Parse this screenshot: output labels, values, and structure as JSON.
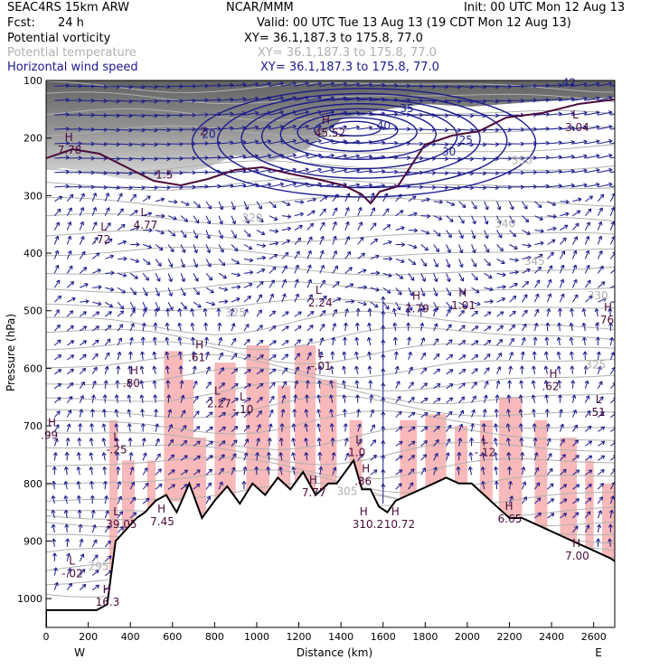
{
  "header": {
    "model": "SEAC4RS 15km ARW",
    "org": "NCAR/MMM",
    "init": "Init: 00 UTC Mon 12 Aug 13",
    "fcst_label": "Fcst:",
    "fcst_value": "24 h",
    "valid": "Valid: 00 UTC Tue 13 Aug 13 (19 CDT Mon 12 Aug 13)",
    "fields": [
      {
        "name": "Potential vorticity",
        "xy": "XY=  36.1,187.3 to 175.8, 77.0",
        "color": "#000000"
      },
      {
        "name": "Potential temperature",
        "xy": "XY=  36.1,187.3 to 175.8, 77.0",
        "color": "#b0b0b0"
      },
      {
        "name": "Horizontal wind speed",
        "xy": "XY=  36.1,187.3 to 175.8, 77.0",
        "color": "#1a1a8c"
      }
    ]
  },
  "chart_data": {
    "type": "cross-section",
    "xlabel": "Distance (km)",
    "ylabel": "Pressure (hPa)",
    "xlim": [
      0,
      2700
    ],
    "ylim": [
      1050,
      100
    ],
    "x_ticks": [
      "0",
      "200",
      "400",
      "600",
      "800",
      "1000",
      "1200",
      "1400",
      "1600",
      "1800",
      "2000",
      "2200",
      "2400",
      "2600"
    ],
    "y_ticks": [
      "100",
      "200",
      "300",
      "400",
      "500",
      "600",
      "700",
      "800",
      "900",
      "1000"
    ],
    "side_labels": {
      "left": "W",
      "right": "E"
    },
    "colors": {
      "terrain": "#000000",
      "pv": "#4a0a3a",
      "theta": "#b0b0b0",
      "wind": "#1a1a8c",
      "cloud": "#f7b9b9"
    },
    "terrain": {
      "x": [
        0,
        120,
        240,
        290,
        330,
        380,
        430,
        470,
        520,
        570,
        620,
        680,
        740,
        800,
        860,
        920,
        980,
        1040,
        1100,
        1160,
        1220,
        1280,
        1340,
        1380,
        1420,
        1460,
        1500,
        1540,
        1580,
        1620,
        1660,
        1720,
        1780,
        1840,
        1900,
        1960,
        2020,
        2080,
        2140,
        2200,
        2260,
        2320,
        2380,
        2440,
        2500,
        2560,
        2620,
        2680,
        2700
      ],
      "p": [
        1020,
        1020,
        1020,
        1010,
        900,
        880,
        860,
        850,
        830,
        820,
        850,
        800,
        860,
        830,
        805,
        835,
        800,
        820,
        790,
        810,
        780,
        820,
        800,
        800,
        780,
        760,
        810,
        810,
        840,
        850,
        830,
        820,
        810,
        800,
        790,
        800,
        800,
        820,
        840,
        860,
        860,
        870,
        880,
        890,
        900,
        910,
        920,
        930,
        935
      ]
    },
    "pv_contours": {
      "values": [
        "1.5",
        "2"
      ]
    },
    "theta_contours": {
      "values": [
        "295",
        "305",
        "320",
        "325",
        "325",
        "330",
        "340",
        "345",
        "350"
      ]
    },
    "wind_speed_contours": {
      "values": [
        "20",
        "25",
        "30",
        "35",
        "40",
        "42"
      ]
    },
    "highs_lows": [
      {
        "type": "H",
        "value": "7.78",
        "x": 80,
        "p": 215
      },
      {
        "type": "L",
        "value": "4.77",
        "x": 440,
        "p": 345
      },
      {
        "type": "L",
        "value": ".72",
        "x": 250,
        "p": 370
      },
      {
        "type": "H",
        "value": "45.52",
        "x": 1300,
        "p": 185
      },
      {
        "type": "L",
        "value": "3.04",
        "x": 2490,
        "p": 175
      },
      {
        "type": "L",
        "value": "2.24",
        "x": 1270,
        "p": 480
      },
      {
        "type": "H",
        "value": "1.79",
        "x": 1730,
        "p": 490
      },
      {
        "type": "H",
        "value": "1.01",
        "x": 1950,
        "p": 485
      },
      {
        "type": "H",
        "value": ".76",
        "x": 2640,
        "p": 510
      },
      {
        "type": "H",
        "value": ".61",
        "x": 700,
        "p": 575
      },
      {
        "type": "L",
        "value": "-.01",
        "x": 1280,
        "p": 590
      },
      {
        "type": "H",
        "value": ".80",
        "x": 390,
        "p": 620
      },
      {
        "type": "H",
        "value": ".62",
        "x": 2380,
        "p": 625
      },
      {
        "type": "L",
        "value": "2.27",
        "x": 790,
        "p": 655
      },
      {
        "type": "L",
        "value": "-.10",
        "x": 910,
        "p": 665
      },
      {
        "type": "L",
        "value": ".51",
        "x": 2600,
        "p": 670
      },
      {
        "type": "H",
        "value": ".99",
        "x": 0,
        "p": 710
      },
      {
        "type": "L",
        "value": "-.25",
        "x": 310,
        "p": 735
      },
      {
        "type": "L",
        "value": "1.0",
        "x": 1460,
        "p": 740
      },
      {
        "type": "L",
        "value": "-.12",
        "x": 2060,
        "p": 740
      },
      {
        "type": "H",
        "value": ".86",
        "x": 1490,
        "p": 790
      },
      {
        "type": "H",
        "value": "7.77",
        "x": 1240,
        "p": 810
      },
      {
        "type": "L",
        "value": "39.05",
        "x": 310,
        "p": 865
      },
      {
        "type": "H",
        "value": "7.45",
        "x": 520,
        "p": 860
      },
      {
        "type": "H",
        "value": "310.2",
        "x": 1480,
        "p": 865
      },
      {
        "type": "H",
        "value": "10.72",
        "x": 1630,
        "p": 865
      },
      {
        "type": "H",
        "value": "6.65",
        "x": 2170,
        "p": 855
      },
      {
        "type": "L",
        "value": "-.02",
        "x": 100,
        "p": 950
      },
      {
        "type": "H",
        "value": "7.00",
        "x": 2490,
        "p": 920
      },
      {
        "type": "H",
        "value": "16.3",
        "x": 260,
        "p": 1000
      }
    ]
  }
}
